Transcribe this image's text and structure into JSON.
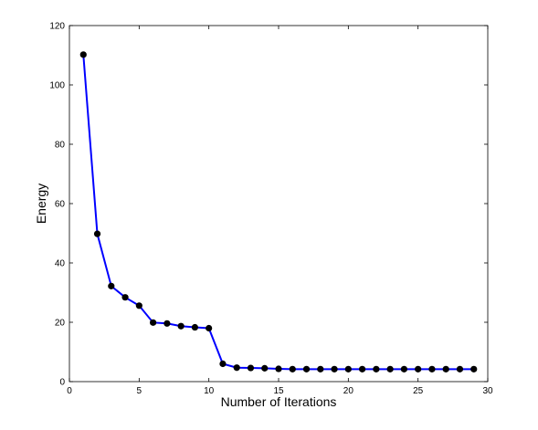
{
  "chart_data": {
    "type": "line",
    "title": "",
    "xlabel": "Number of Iterations",
    "ylabel": "Energy",
    "xlim": [
      0,
      30
    ],
    "ylim": [
      0,
      120
    ],
    "xticks": [
      0,
      5,
      10,
      15,
      20,
      25,
      30
    ],
    "yticks": [
      0,
      20,
      40,
      60,
      80,
      100,
      120
    ],
    "grid": false,
    "legend": "none",
    "series": [
      {
        "line_color": "#0000ff",
        "marker_color": "#000000",
        "marker": "circle",
        "x": [
          1,
          2,
          3,
          4,
          5,
          6,
          7,
          8,
          9,
          10,
          11,
          12,
          13,
          14,
          15,
          16,
          17,
          18,
          19,
          20,
          21,
          22,
          23,
          24,
          25,
          26,
          27,
          28,
          29
        ],
        "y": [
          110.2,
          49.8,
          32.2,
          28.4,
          25.6,
          19.9,
          19.6,
          18.7,
          18.3,
          18.0,
          6.0,
          4.7,
          4.6,
          4.5,
          4.3,
          4.2,
          4.2,
          4.2,
          4.2,
          4.2,
          4.2,
          4.2,
          4.2,
          4.2,
          4.2,
          4.2,
          4.2,
          4.2,
          4.2
        ]
      }
    ]
  }
}
